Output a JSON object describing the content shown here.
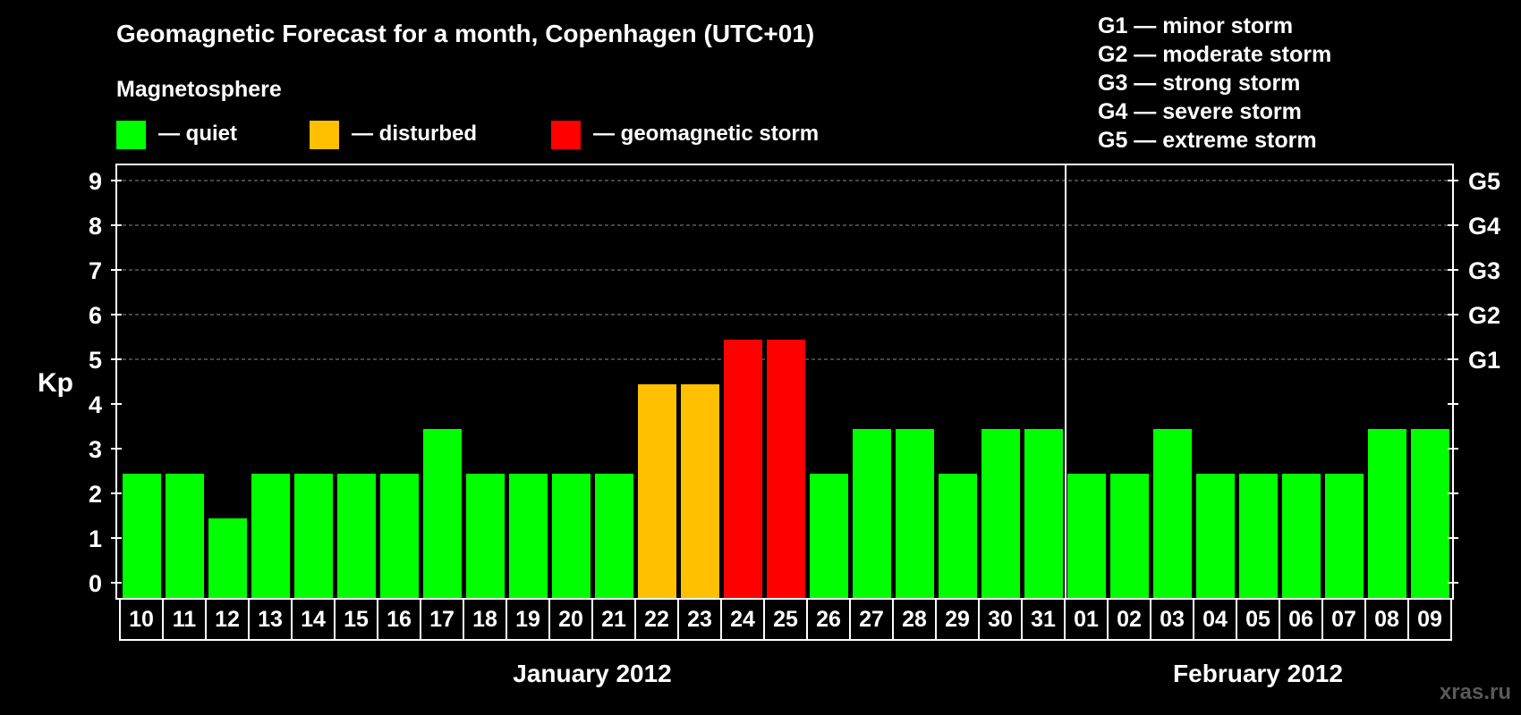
{
  "chart_data": {
    "type": "bar",
    "title": "Geomagnetic Forecast for a month, Copenhagen (UTC+01)",
    "legend_title": "Magnetosphere",
    "legend": [
      {
        "label": "— quiet",
        "color": "#00ff00"
      },
      {
        "label": "— disturbed",
        "color": "#ffc000"
      },
      {
        "label": "— geomagnetic storm",
        "color": "#ff0000"
      }
    ],
    "storm_scale": [
      "G1 — minor storm",
      "G2 — moderate storm",
      "G3 — strong storm",
      "G4 — severe storm",
      "G5 — extreme storm"
    ],
    "ylabel": "Kp",
    "ylim": [
      0,
      9
    ],
    "yticks": [
      "0",
      "1",
      "2",
      "3",
      "4",
      "5",
      "6",
      "7",
      "8",
      "9"
    ],
    "right_axis_labels": [
      {
        "kp": 5,
        "label": "G1"
      },
      {
        "kp": 6,
        "label": "G2"
      },
      {
        "kp": 7,
        "label": "G3"
      },
      {
        "kp": 8,
        "label": "G4"
      },
      {
        "kp": 9,
        "label": "G5"
      }
    ],
    "grid": true,
    "categories": [
      "10",
      "11",
      "12",
      "13",
      "14",
      "15",
      "16",
      "17",
      "18",
      "19",
      "20",
      "21",
      "22",
      "23",
      "24",
      "25",
      "26",
      "27",
      "28",
      "29",
      "30",
      "31",
      "01",
      "02",
      "03",
      "04",
      "05",
      "06",
      "07",
      "08",
      "09"
    ],
    "values": [
      2,
      2,
      1,
      2,
      2,
      2,
      2,
      3,
      2,
      2,
      2,
      2,
      4,
      4,
      5,
      5,
      2,
      3,
      3,
      2,
      3,
      3,
      2,
      2,
      3,
      2,
      2,
      2,
      2,
      3,
      3
    ],
    "colors": {
      "quiet": "#00ff00",
      "disturbed": "#ffc000",
      "storm": "#ff0000"
    },
    "months": [
      {
        "label": "January 2012",
        "start_index": 0,
        "end_index": 21
      },
      {
        "label": "February 2012",
        "start_index": 22,
        "end_index": 30
      }
    ],
    "month_divider_after_index": 21
  },
  "watermark": "xras.ru"
}
